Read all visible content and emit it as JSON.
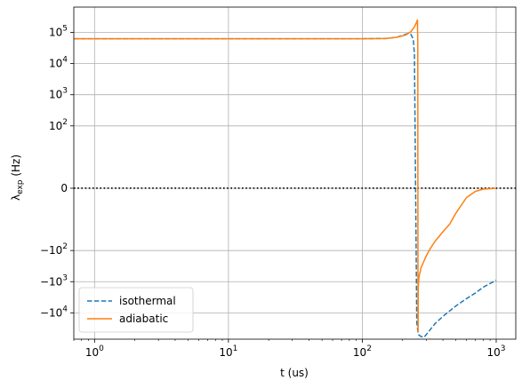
{
  "chart_data": {
    "type": "line",
    "title": "",
    "xlabel": "t (us)",
    "ylabel_main": "λ",
    "ylabel_sub": "exp",
    "ylabel_unit": " (Hz)",
    "x_scale": "log",
    "y_scale": "symlog",
    "symlog_linthresh": 10,
    "xlim": [
      0.7,
      1400
    ],
    "ylim": [
      -70000,
      650000
    ],
    "grid": true,
    "legend_position": "lower-left",
    "x_ticks": [
      {
        "value": 1,
        "base": "10",
        "exp": "0"
      },
      {
        "value": 10,
        "base": "10",
        "exp": "1"
      },
      {
        "value": 100,
        "base": "10",
        "exp": "2"
      },
      {
        "value": 1000,
        "base": "10",
        "exp": "3"
      }
    ],
    "y_ticks": [
      {
        "value": 100000,
        "base": "10",
        "exp": "5"
      },
      {
        "value": 10000,
        "base": "10",
        "exp": "4"
      },
      {
        "value": 1000,
        "base": "10",
        "exp": "3"
      },
      {
        "value": 100,
        "base": "10",
        "exp": "2"
      },
      {
        "value": 0,
        "text": "0"
      },
      {
        "value": -100,
        "base": "−10",
        "exp": "2"
      },
      {
        "value": -1000,
        "base": "−10",
        "exp": "3"
      },
      {
        "value": -10000,
        "base": "−10",
        "exp": "4"
      }
    ],
    "zero_line": {
      "y": 0,
      "style": "dotted",
      "color": "#000000"
    },
    "series": [
      {
        "name": "isothermal",
        "color": "#1f77b4",
        "dash": "dashed",
        "points": [
          [
            0.7,
            63000
          ],
          [
            1,
            63000
          ],
          [
            10,
            63000
          ],
          [
            100,
            63000
          ],
          [
            150,
            64000
          ],
          [
            180,
            70000
          ],
          [
            200,
            80000
          ],
          [
            215,
            90000
          ],
          [
            230,
            88000
          ],
          [
            240,
            62000
          ],
          [
            245,
            20000
          ],
          [
            250,
            0
          ],
          [
            255,
            -20000
          ],
          [
            262,
            -50000
          ],
          [
            275,
            -58000
          ],
          [
            290,
            -60000
          ],
          [
            310,
            -42000
          ],
          [
            350,
            -22000
          ],
          [
            400,
            -13000
          ],
          [
            500,
            -6000
          ],
          [
            600,
            -3500
          ],
          [
            700,
            -2300
          ],
          [
            800,
            -1500
          ],
          [
            1000,
            -900
          ]
        ]
      },
      {
        "name": "adiabatic",
        "color": "#ff7f0e",
        "dash": "solid",
        "points": [
          [
            0.7,
            63000
          ],
          [
            1,
            63000
          ],
          [
            10,
            63000
          ],
          [
            100,
            63000
          ],
          [
            150,
            64000
          ],
          [
            180,
            70000
          ],
          [
            210,
            82000
          ],
          [
            230,
            105000
          ],
          [
            245,
            150000
          ],
          [
            255,
            220000
          ],
          [
            258,
            250000
          ],
          [
            259.5,
            50000
          ],
          [
            260,
            0
          ],
          [
            260.5,
            -20000
          ],
          [
            260.8,
            -40000
          ],
          [
            261.5,
            -1500
          ],
          [
            265,
            -700
          ],
          [
            275,
            -350
          ],
          [
            300,
            -150
          ],
          [
            320,
            -90
          ],
          [
            350,
            -50
          ],
          [
            400,
            -25
          ],
          [
            450,
            -14
          ],
          [
            500,
            -8
          ],
          [
            600,
            -3
          ],
          [
            700,
            -1
          ],
          [
            800,
            -0.3
          ],
          [
            1000,
            0
          ]
        ]
      }
    ]
  }
}
